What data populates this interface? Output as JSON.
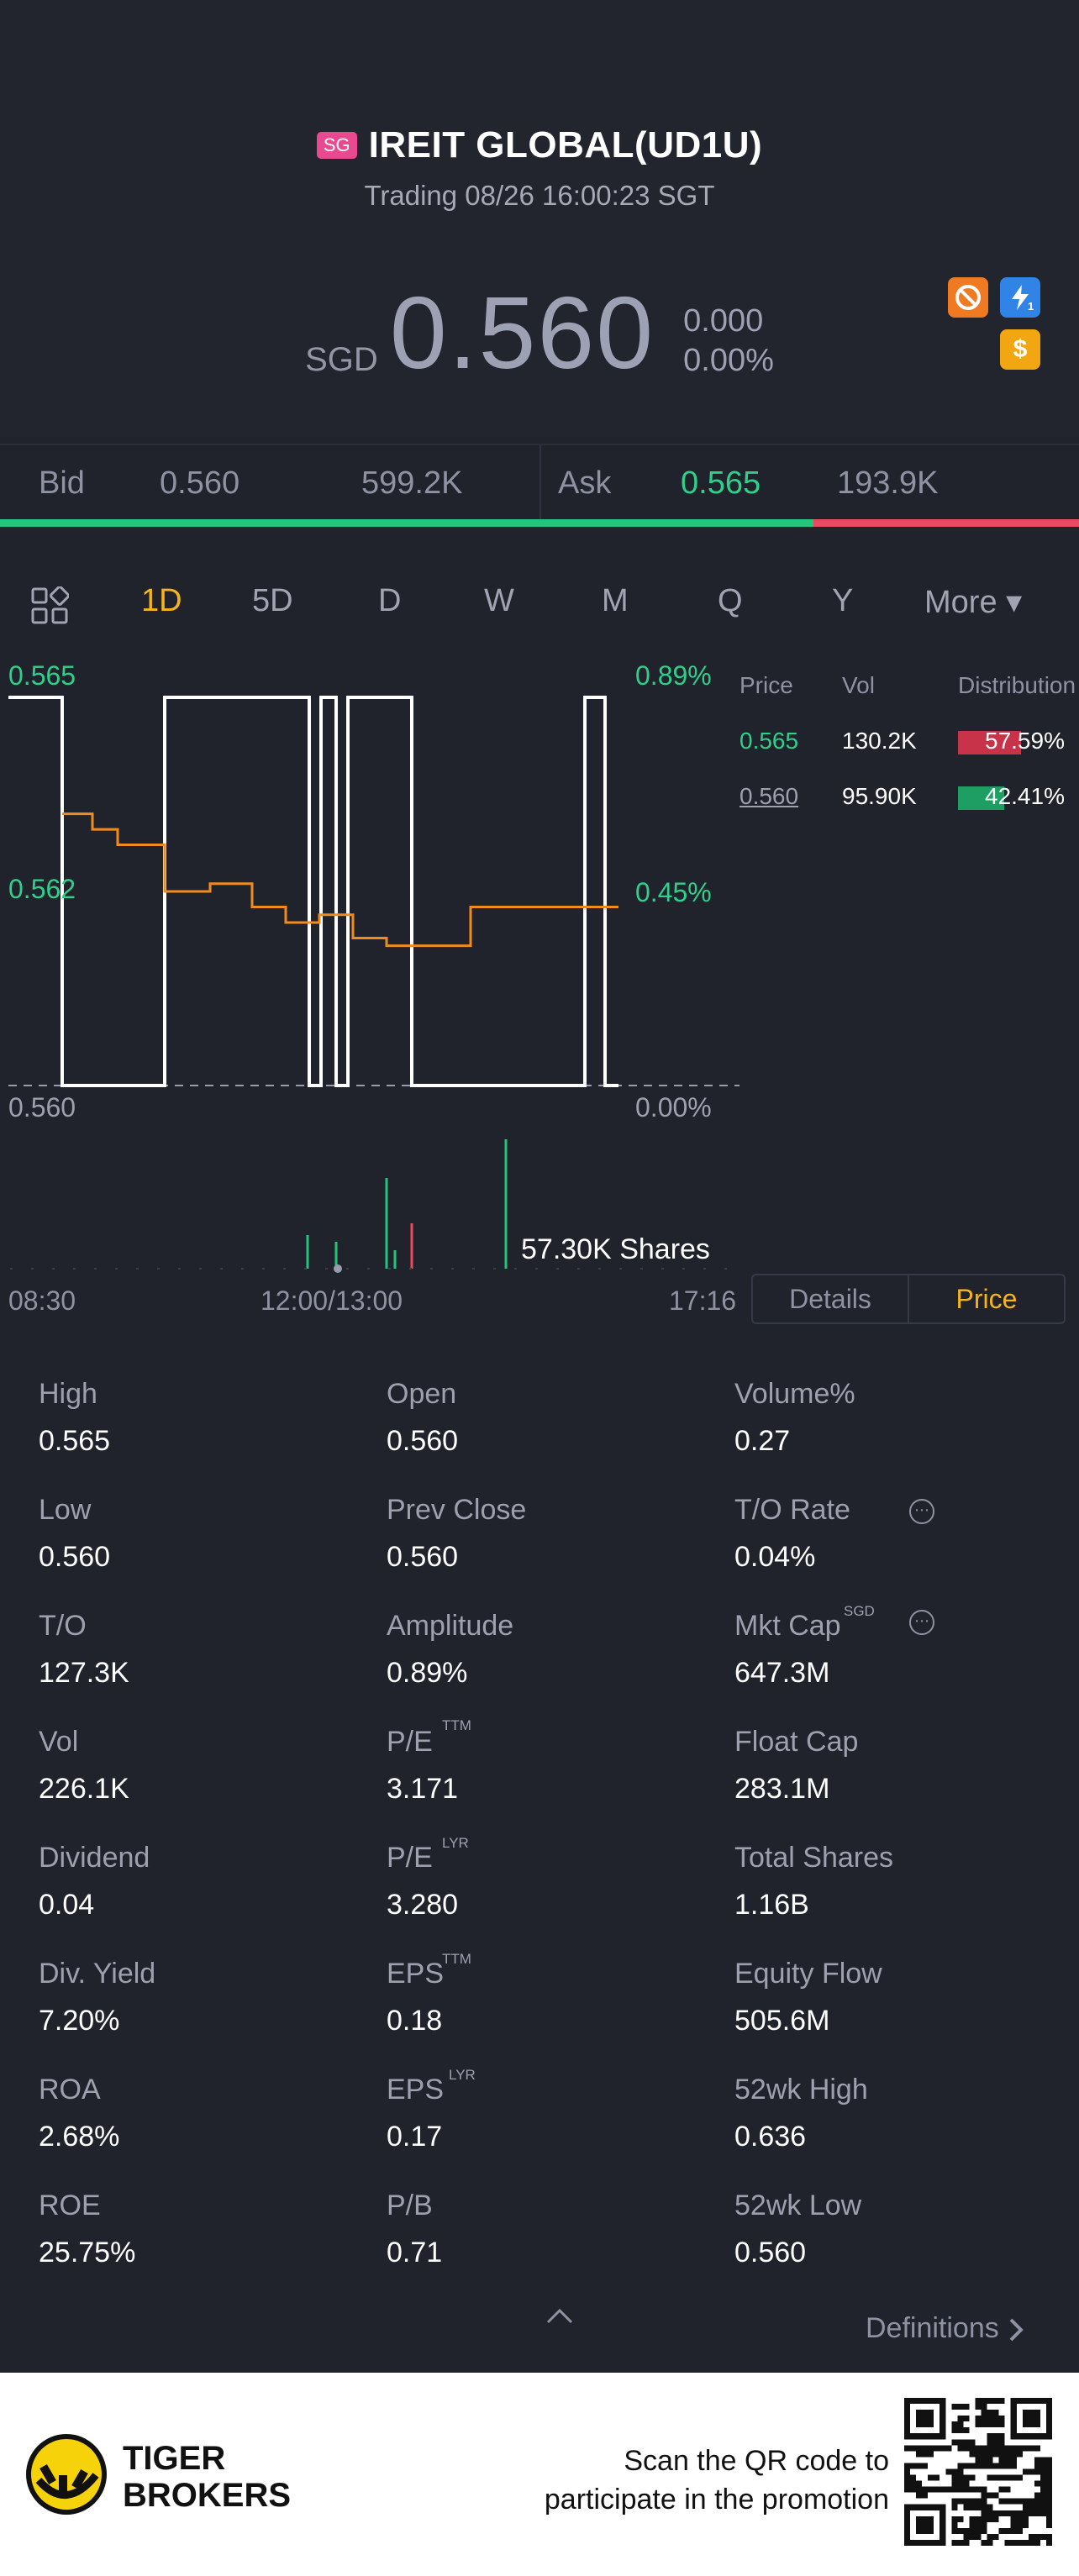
{
  "header": {
    "market_badge": "SG",
    "title": "IREIT GLOBAL(UD1U)",
    "subtitle": "Trading 08/26 16:00:23 SGT",
    "currency": "SGD",
    "price": "0.560",
    "change": "0.000",
    "change_pct": "0.00%",
    "icons": [
      "no-margin-icon",
      "flash-1-icon",
      "dollar-icon"
    ]
  },
  "bidask": {
    "bid_label": "Bid",
    "bid_price": "0.560",
    "bid_vol": "599.2K",
    "ask_label": "Ask",
    "ask_price": "0.565",
    "ask_vol": "193.9K",
    "bid_share": 0.754
  },
  "tabs": [
    "1D",
    "5D",
    "D",
    "W",
    "M",
    "Q",
    "Y",
    "More ▾"
  ],
  "chart": {
    "left_top": "0.565",
    "left_mid": "0.562",
    "left_bottom": "0.560",
    "right_top": "0.89%",
    "right_mid": "0.45%",
    "right_bottom": "0.00%",
    "volume_label": "57.30K Shares",
    "time_start": "08:30",
    "time_mid": "12:00/13:00",
    "time_end": "17:16"
  },
  "chart_data": {
    "type": "line",
    "ylim": [
      0.56,
      0.565
    ],
    "series": [
      {
        "values": [
          0.5635,
          0.5633,
          0.5631,
          0.5625,
          0.5626,
          0.5623,
          0.5621,
          0.5622,
          0.5619,
          0.5618,
          0.5618,
          0.5623,
          0.5623,
          0.5623
        ]
      },
      {
        "values": [
          0.565,
          0.56,
          0.565,
          0.56,
          0.565,
          0.56,
          0.565,
          0.56,
          0.565,
          0.56
        ]
      }
    ]
  },
  "orderbook": {
    "head": [
      "Price",
      "Vol",
      "Distribution"
    ],
    "rows": [
      {
        "price": "0.565",
        "vol": "130.2K",
        "dist": "57.59%",
        "color": "#c8334a",
        "share": 0.5759
      },
      {
        "price": "0.560",
        "vol": "95.90K",
        "dist": "42.41%",
        "color": "#1f9e63",
        "share": 0.4241
      }
    ]
  },
  "toggle": {
    "details": "Details",
    "price": "Price"
  },
  "stats": [
    [
      {
        "label": "High",
        "value": "0.565"
      },
      {
        "label": "Open",
        "value": "0.560"
      },
      {
        "label": "Volume%",
        "value": "0.27"
      }
    ],
    [
      {
        "label": "Low",
        "value": "0.560"
      },
      {
        "label": "Prev Close",
        "value": "0.560"
      },
      {
        "label": "T/O Rate",
        "value": "0.04%"
      }
    ],
    [
      {
        "label": "T/O",
        "value": "127.3K"
      },
      {
        "label": "Amplitude",
        "value": "0.89%"
      },
      {
        "label": "Mkt Cap",
        "value": "647.3M"
      }
    ],
    [
      {
        "label": "Vol",
        "value": "226.1K"
      },
      {
        "label": "P/E",
        "value": "3.171"
      },
      {
        "label": "Float Cap",
        "value": "283.1M"
      }
    ],
    [
      {
        "label": "Dividend",
        "value": "0.04"
      },
      {
        "label": "P/E",
        "value": "3.280"
      },
      {
        "label": "Total Shares",
        "value": "1.16B"
      }
    ],
    [
      {
        "label": "Div. Yield",
        "value": "7.20%"
      },
      {
        "label": "EPS",
        "value": "0.18"
      },
      {
        "label": "Equity Flow",
        "value": "505.6M"
      }
    ],
    [
      {
        "label": "ROA",
        "value": "2.68%"
      },
      {
        "label": "EPS",
        "value": "0.17"
      },
      {
        "label": "52wk High",
        "value": "0.636"
      }
    ],
    [
      {
        "label": "ROE",
        "value": "25.75%"
      },
      {
        "label": "P/B",
        "value": "0.71"
      },
      {
        "label": "52wk Low",
        "value": "0.560"
      }
    ]
  ],
  "superscripts": {
    "ttm": "TTM",
    "lyr": "LYR",
    "sgd": "SGD"
  },
  "definitions": "Definitions",
  "footer": {
    "brand_line1": "TIGER",
    "brand_line2": "BROKERS",
    "promo_line1": "Scan the QR code to",
    "promo_line2": "participate in the promotion"
  }
}
